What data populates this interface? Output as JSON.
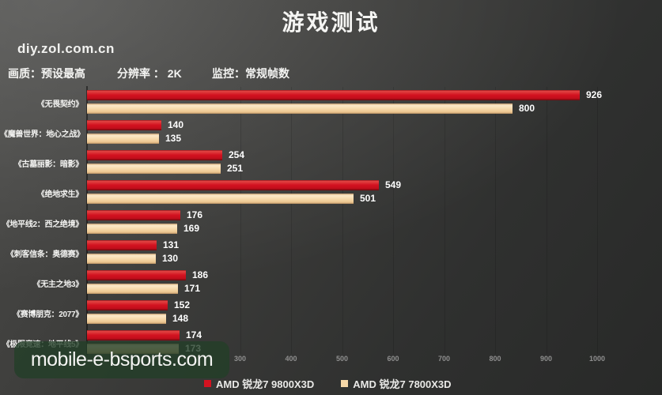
{
  "header": {
    "title": "游戏测试",
    "site": "diy.zol.com.cn",
    "settings": {
      "quality": "画质：预设最高",
      "resolution": "分辨率 ： 2K",
      "monitor": "监控：常规帧数"
    }
  },
  "watermark": "mobile-e-bsports.com",
  "colors": {
    "series_red": "#d31220",
    "series_tan": "#f6d8a8",
    "background_dark": "#2f302f",
    "background_light": "#4c4c4a",
    "value_text": "#ffffff",
    "tick_text": "#8f8f8f",
    "watermark_bg": "#233f28"
  },
  "chart_data": {
    "type": "bar",
    "orientation": "horizontal",
    "title": "游戏测试",
    "xlabel": "",
    "ylabel": "",
    "xlim": [
      0,
      1000
    ],
    "x_ticks": [
      300,
      400,
      500,
      600,
      700,
      800,
      900,
      1000
    ],
    "grid": true,
    "legend_position": "bottom",
    "categories": [
      "《无畏契约》",
      "《魔兽世界：地心之战》",
      "《古墓丽影：暗影》",
      "《绝地求生》",
      "《地平线2：西之绝境》",
      "《刺客信条：奥德赛》",
      "《无主之地3》",
      "《赛博朋克：2077》",
      "《极限竞速：地平线5》"
    ],
    "series": [
      {
        "name": "AMD 锐龙7 9800X3D",
        "color": "#d31220",
        "values": [
          926,
          140,
          254,
          549,
          176,
          131,
          186,
          152,
          174
        ]
      },
      {
        "name": "AMD 锐龙7 7800X3D",
        "color": "#f6d8a8",
        "values": [
          800,
          135,
          251,
          501,
          169,
          130,
          171,
          148,
          173
        ]
      }
    ]
  }
}
